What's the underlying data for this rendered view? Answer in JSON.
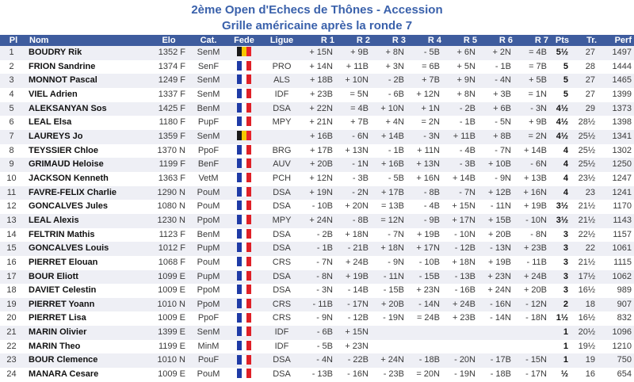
{
  "title": {
    "line1": "2ème Open d'Echecs de Thônes - Accession",
    "line2": "Grille américaine après la ronde 7"
  },
  "columns": [
    {
      "key": "pl",
      "label": "Pl"
    },
    {
      "key": "nom",
      "label": "Nom"
    },
    {
      "key": "elo",
      "label": "Elo"
    },
    {
      "key": "cat",
      "label": "Cat."
    },
    {
      "key": "fede",
      "label": "Fede"
    },
    {
      "key": "ligue",
      "label": "Ligue"
    },
    {
      "key": "r1",
      "label": "R 1"
    },
    {
      "key": "r2",
      "label": "R 2"
    },
    {
      "key": "r3",
      "label": "R 3"
    },
    {
      "key": "r4",
      "label": "R 4"
    },
    {
      "key": "r5",
      "label": "R 5"
    },
    {
      "key": "r6",
      "label": "R 6"
    },
    {
      "key": "r7",
      "label": "R 7"
    },
    {
      "key": "pts",
      "label": "Pts"
    },
    {
      "key": "tr",
      "label": "Tr."
    },
    {
      "key": "perf",
      "label": "Perf"
    }
  ],
  "colors": {
    "title_text": "#3A61AB",
    "header_bg": "#3E5C9E",
    "header_text": "#FFFFFF",
    "row_alt_bg": "#EEEFF5",
    "row_bg": "#FFFFFF",
    "name_text": "#111111",
    "body_text": "#3A3A3A"
  },
  "flags": {
    "FRA": {
      "name": "france",
      "stripes": [
        "#1F3BA6",
        "#FFFFFF",
        "#DF2027"
      ]
    },
    "BEL": {
      "name": "belgium",
      "stripes": [
        "#1A1A1A",
        "#F5C800",
        "#E8242B"
      ]
    }
  },
  "players": [
    {
      "pl": "1",
      "nom": "BOUDRY Rik",
      "elo": "1352 F",
      "cat": "SenM",
      "fede": "BEL",
      "ligue": "",
      "rounds": [
        "+ 15N",
        "+ 9B",
        "+ 8N",
        "- 5B",
        "+ 6N",
        "+ 2N",
        "= 4B"
      ],
      "pts": "5½",
      "tr": "27",
      "perf": "1497"
    },
    {
      "pl": "2",
      "nom": "FRION Sandrine",
      "elo": "1374 F",
      "cat": "SenF",
      "fede": "FRA",
      "ligue": "PRO",
      "rounds": [
        "+ 14N",
        "+ 11B",
        "+ 3N",
        "= 6B",
        "+ 5N",
        "- 1B",
        "= 7B"
      ],
      "pts": "5",
      "tr": "28",
      "perf": "1444"
    },
    {
      "pl": "3",
      "nom": "MONNOT Pascal",
      "elo": "1249 F",
      "cat": "SenM",
      "fede": "FRA",
      "ligue": "ALS",
      "rounds": [
        "+ 18B",
        "+ 10N",
        "- 2B",
        "+ 7B",
        "+ 9N",
        "- 4N",
        "+ 5B"
      ],
      "pts": "5",
      "tr": "27",
      "perf": "1465"
    },
    {
      "pl": "4",
      "nom": "VIEL Adrien",
      "elo": "1337 F",
      "cat": "SenM",
      "fede": "FRA",
      "ligue": "IDF",
      "rounds": [
        "+ 23B",
        "= 5N",
        "- 6B",
        "+ 12N",
        "+ 8N",
        "+ 3B",
        "= 1N"
      ],
      "pts": "5",
      "tr": "27",
      "perf": "1399"
    },
    {
      "pl": "5",
      "nom": "ALEKSANYAN Sos",
      "elo": "1425 F",
      "cat": "BenM",
      "fede": "FRA",
      "ligue": "DSA",
      "rounds": [
        "+ 22N",
        "= 4B",
        "+ 10N",
        "+ 1N",
        "- 2B",
        "+ 6B",
        "- 3N"
      ],
      "pts": "4½",
      "tr": "29",
      "perf": "1373"
    },
    {
      "pl": "6",
      "nom": "LEAL Elsa",
      "elo": "1180 F",
      "cat": "PupF",
      "fede": "FRA",
      "ligue": "MPY",
      "rounds": [
        "+ 21N",
        "+ 7B",
        "+ 4N",
        "= 2N",
        "- 1B",
        "- 5N",
        "+ 9B"
      ],
      "pts": "4½",
      "tr": "28½",
      "perf": "1398"
    },
    {
      "pl": "7",
      "nom": "LAUREYS Jo",
      "elo": "1359 F",
      "cat": "SenM",
      "fede": "BEL",
      "ligue": "",
      "rounds": [
        "+ 16B",
        "- 6N",
        "+ 14B",
        "- 3N",
        "+ 11B",
        "+ 8B",
        "= 2N"
      ],
      "pts": "4½",
      "tr": "25½",
      "perf": "1341"
    },
    {
      "pl": "8",
      "nom": "TEYSSIER Chloe",
      "elo": "1370 N",
      "cat": "PpoF",
      "fede": "FRA",
      "ligue": "BRG",
      "rounds": [
        "+ 17B",
        "+ 13N",
        "- 1B",
        "+ 11N",
        "- 4B",
        "- 7N",
        "+ 14B"
      ],
      "pts": "4",
      "tr": "25½",
      "perf": "1302"
    },
    {
      "pl": "9",
      "nom": "GRIMAUD Heloise",
      "elo": "1199 F",
      "cat": "BenF",
      "fede": "FRA",
      "ligue": "AUV",
      "rounds": [
        "+ 20B",
        "- 1N",
        "+ 16B",
        "+ 13N",
        "- 3B",
        "+ 10B",
        "- 6N"
      ],
      "pts": "4",
      "tr": "25½",
      "perf": "1250"
    },
    {
      "pl": "10",
      "nom": "JACKSON Kenneth",
      "elo": "1363 F",
      "cat": "VetM",
      "fede": "FRA",
      "ligue": "PCH",
      "rounds": [
        "+ 12N",
        "- 3B",
        "- 5B",
        "+ 16N",
        "+ 14B",
        "- 9N",
        "+ 13B"
      ],
      "pts": "4",
      "tr": "23½",
      "perf": "1247"
    },
    {
      "pl": "11",
      "nom": "FAVRE-FELIX Charlie",
      "elo": "1290 N",
      "cat": "PouM",
      "fede": "FRA",
      "ligue": "DSA",
      "rounds": [
        "+ 19N",
        "- 2N",
        "+ 17B",
        "- 8B",
        "- 7N",
        "+ 12B",
        "+ 16N"
      ],
      "pts": "4",
      "tr": "23",
      "perf": "1241"
    },
    {
      "pl": "12",
      "nom": "GONCALVES Jules",
      "elo": "1080 N",
      "cat": "PouM",
      "fede": "FRA",
      "ligue": "DSA",
      "rounds": [
        "- 10B",
        "+ 20N",
        "= 13B",
        "- 4B",
        "+ 15N",
        "- 11N",
        "+ 19B"
      ],
      "pts": "3½",
      "tr": "21½",
      "perf": "1170"
    },
    {
      "pl": "13",
      "nom": "LEAL Alexis",
      "elo": "1230 N",
      "cat": "PpoM",
      "fede": "FRA",
      "ligue": "MPY",
      "rounds": [
        "+ 24N",
        "- 8B",
        "= 12N",
        "- 9B",
        "+ 17N",
        "+ 15B",
        "- 10N"
      ],
      "pts": "3½",
      "tr": "21½",
      "perf": "1143"
    },
    {
      "pl": "14",
      "nom": "FELTRIN Mathis",
      "elo": "1123 F",
      "cat": "BenM",
      "fede": "FRA",
      "ligue": "DSA",
      "rounds": [
        "- 2B",
        "+ 18N",
        "- 7N",
        "+ 19B",
        "- 10N",
        "+ 20B",
        "- 8N"
      ],
      "pts": "3",
      "tr": "22½",
      "perf": "1157"
    },
    {
      "pl": "15",
      "nom": "GONCALVES Louis",
      "elo": "1012 F",
      "cat": "PupM",
      "fede": "FRA",
      "ligue": "DSA",
      "rounds": [
        "- 1B",
        "- 21B",
        "+ 18N",
        "+ 17N",
        "- 12B",
        "- 13N",
        "+ 23B"
      ],
      "pts": "3",
      "tr": "22",
      "perf": "1061"
    },
    {
      "pl": "16",
      "nom": "PIERRET Elouan",
      "elo": "1068 F",
      "cat": "PouM",
      "fede": "FRA",
      "ligue": "CRS",
      "rounds": [
        "- 7N",
        "+ 24B",
        "- 9N",
        "- 10B",
        "+ 18N",
        "+ 19B",
        "- 11B"
      ],
      "pts": "3",
      "tr": "21½",
      "perf": "1115"
    },
    {
      "pl": "17",
      "nom": "BOUR Eliott",
      "elo": "1099 E",
      "cat": "PupM",
      "fede": "FRA",
      "ligue": "DSA",
      "rounds": [
        "- 8N",
        "+ 19B",
        "- 11N",
        "- 15B",
        "- 13B",
        "+ 23N",
        "+ 24B"
      ],
      "pts": "3",
      "tr": "17½",
      "perf": "1062"
    },
    {
      "pl": "18",
      "nom": "DAVIET Celestin",
      "elo": "1009 E",
      "cat": "PpoM",
      "fede": "FRA",
      "ligue": "DSA",
      "rounds": [
        "- 3N",
        "- 14B",
        "- 15B",
        "+ 23N",
        "- 16B",
        "+ 24N",
        "+ 20B"
      ],
      "pts": "3",
      "tr": "16½",
      "perf": "989"
    },
    {
      "pl": "19",
      "nom": "PIERRET Yoann",
      "elo": "1010 N",
      "cat": "PpoM",
      "fede": "FRA",
      "ligue": "CRS",
      "rounds": [
        "- 11B",
        "- 17N",
        "+ 20B",
        "- 14N",
        "+ 24B",
        "- 16N",
        "- 12N"
      ],
      "pts": "2",
      "tr": "18",
      "perf": "907"
    },
    {
      "pl": "20",
      "nom": "PIERRET Lisa",
      "elo": "1009 E",
      "cat": "PpoF",
      "fede": "FRA",
      "ligue": "CRS",
      "rounds": [
        "- 9N",
        "- 12B",
        "- 19N",
        "= 24B",
        "+ 23B",
        "- 14N",
        "- 18N"
      ],
      "pts": "1½",
      "tr": "16½",
      "perf": "832"
    },
    {
      "pl": "21",
      "nom": "MARIN Olivier",
      "elo": "1399 E",
      "cat": "SenM",
      "fede": "FRA",
      "ligue": "IDF",
      "rounds": [
        "- 6B",
        "+ 15N",
        "",
        "",
        "",
        "",
        ""
      ],
      "pts": "1",
      "tr": "20½",
      "perf": "1096"
    },
    {
      "pl": "22",
      "nom": "MARIN Theo",
      "elo": "1199 E",
      "cat": "MinM",
      "fede": "FRA",
      "ligue": "IDF",
      "rounds": [
        "- 5B",
        "+ 23N",
        "",
        "",
        "",
        "",
        ""
      ],
      "pts": "1",
      "tr": "19½",
      "perf": "1210"
    },
    {
      "pl": "23",
      "nom": "BOUR Clemence",
      "elo": "1010 N",
      "cat": "PouF",
      "fede": "FRA",
      "ligue": "DSA",
      "rounds": [
        "- 4N",
        "- 22B",
        "+ 24N",
        "- 18B",
        "- 20N",
        "- 17B",
        "- 15N"
      ],
      "pts": "1",
      "tr": "19",
      "perf": "750"
    },
    {
      "pl": "24",
      "nom": "MANARA Cesare",
      "elo": "1009 E",
      "cat": "PouM",
      "fede": "FRA",
      "ligue": "DSA",
      "rounds": [
        "- 13B",
        "- 16N",
        "- 23B",
        "= 20N",
        "- 19N",
        "- 18B",
        "- 17N"
      ],
      "pts": "½",
      "tr": "16",
      "perf": "654"
    }
  ]
}
